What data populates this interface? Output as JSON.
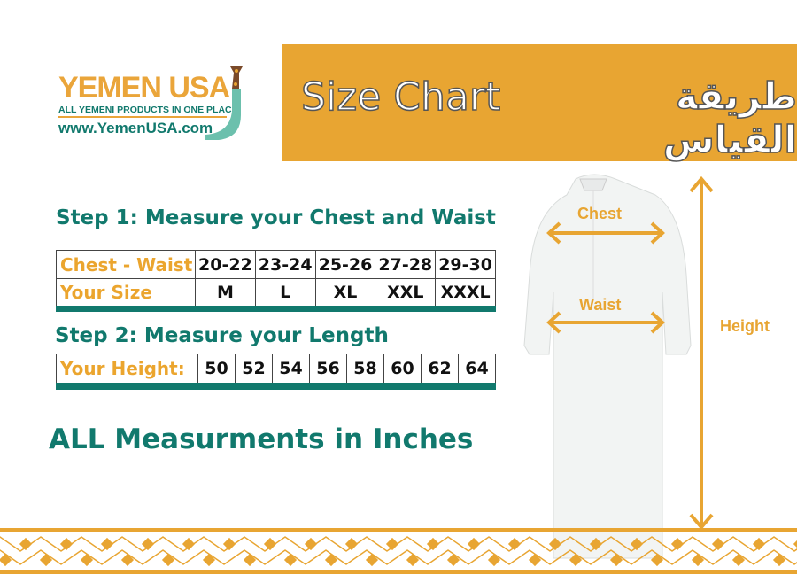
{
  "logo": {
    "name": "YEMEN USA",
    "tagline": "ALL YEMENI PRODUCTS IN ONE PLACE",
    "url": "www.YemenUSA.com"
  },
  "banner": {
    "title": "Size Chart",
    "title_ar": "طريقة القياس",
    "color": "#e8a532"
  },
  "step1": {
    "heading": "Step 1: Measure your Chest and Waist",
    "row1_label": "Chest - Waist",
    "row2_label": "Your Size",
    "ranges": [
      "20-22",
      "23-24",
      "25-26",
      "27-28",
      "29-30"
    ],
    "sizes": [
      "M",
      "L",
      "XL",
      "XXL",
      "XXXL"
    ]
  },
  "step2": {
    "heading": "Step 2: Measure your Length",
    "label": "Your Height:",
    "heights": [
      "50",
      "52",
      "54",
      "56",
      "58",
      "60",
      "62",
      "64"
    ]
  },
  "note": "ALL Measurments in Inches",
  "diagram": {
    "chest": "Chest",
    "waist": "Waist",
    "height": "Height"
  },
  "colors": {
    "teal": "#11796d",
    "orange": "#e8a532"
  }
}
